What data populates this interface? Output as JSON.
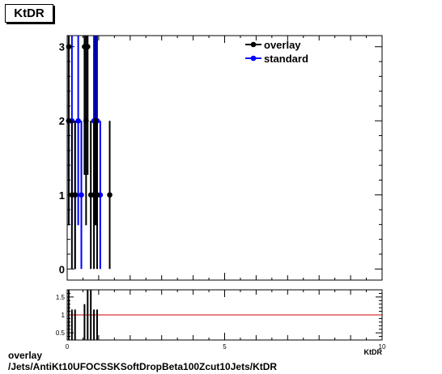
{
  "title": "KtDR",
  "footer": {
    "line1": "overlay",
    "line2": "/Jets/AntiKt10UFOCSSKSoftDropBeta100Zcut10Jets/KtDR"
  },
  "chart_data": {
    "type": "scatter",
    "title": "KtDR",
    "xlabel": "KtDR",
    "ylabel": "",
    "xlim": [
      0,
      10
    ],
    "ylim": [
      -0.15,
      3.15
    ],
    "yticks": [
      0,
      1,
      2,
      3
    ],
    "ratio_ylim": [
      0.3,
      1.7
    ],
    "ratio_yticks": [
      0.5,
      1,
      1.5
    ],
    "ratio_ticklabels": [
      "0.5",
      "1",
      "1.5"
    ],
    "xticks": [
      0,
      5,
      10
    ],
    "legend": "top-right",
    "colors": {
      "overlay": "#000000",
      "standard": "#0000ff",
      "ratio_line": "#cc0000"
    },
    "series": [
      {
        "name": "overlay",
        "points": [
          {
            "x": 0.05,
            "y": 3,
            "err": 1.73
          },
          {
            "x": 0.05,
            "y": 2,
            "err": 1.41
          },
          {
            "x": 0.15,
            "y": 1,
            "err": 1.0
          },
          {
            "x": 0.25,
            "y": 1,
            "err": 1.0
          },
          {
            "x": 0.55,
            "y": 3,
            "err": 1.73
          },
          {
            "x": 0.6,
            "y": 2,
            "err": 1.41
          },
          {
            "x": 0.65,
            "y": 3,
            "err": 1.73
          },
          {
            "x": 0.75,
            "y": 1,
            "err": 1.0
          },
          {
            "x": 0.85,
            "y": 1,
            "err": 1.0
          },
          {
            "x": 0.9,
            "y": 2,
            "err": 1.41
          },
          {
            "x": 0.95,
            "y": 1,
            "err": 1.0
          },
          {
            "x": 1.35,
            "y": 1,
            "err": 1.0
          }
        ]
      },
      {
        "name": "standard",
        "points": [
          {
            "x": 0.05,
            "y": 2,
            "err": 1.41
          },
          {
            "x": 0.15,
            "y": 2,
            "err": 1.41
          },
          {
            "x": 0.25,
            "y": 1,
            "err": 1.0
          },
          {
            "x": 0.35,
            "y": 2,
            "err": 1.41
          },
          {
            "x": 0.45,
            "y": 1,
            "err": 1.0
          },
          {
            "x": 0.85,
            "y": 2,
            "err": 1.41
          },
          {
            "x": 0.95,
            "y": 2,
            "err": 1.41
          },
          {
            "x": 1.05,
            "y": 1,
            "err": 1.0
          }
        ]
      }
    ],
    "ratio_bars": [
      {
        "x": 0.05,
        "lo": 0.3,
        "hi": 1.7
      },
      {
        "x": 0.15,
        "lo": 0.3,
        "hi": 1.15
      },
      {
        "x": 0.25,
        "lo": 0.3,
        "hi": 1.15
      },
      {
        "x": 0.55,
        "lo": 0.3,
        "hi": 1.3
      },
      {
        "x": 0.65,
        "lo": 0.3,
        "hi": 1.7
      },
      {
        "x": 0.75,
        "lo": 0.3,
        "hi": 1.7
      },
      {
        "x": 0.85,
        "lo": 0.3,
        "hi": 1.15
      },
      {
        "x": 0.95,
        "lo": 0.3,
        "hi": 1.15
      }
    ]
  }
}
